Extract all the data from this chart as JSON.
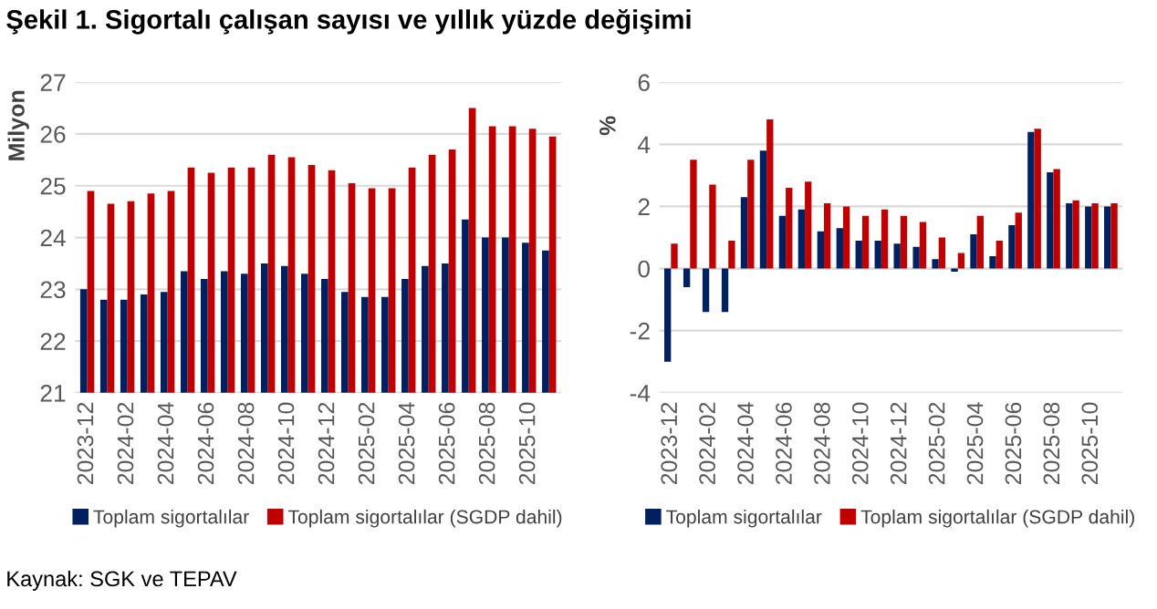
{
  "chart_data": [
    {
      "type": "bar",
      "title": "Şekil 1. Sigortalı çalışan sayısı ve yıllık yüzde değişimi",
      "ylabel": "Milyon",
      "categories": [
        "2023-12",
        null,
        "2024-02",
        null,
        "2024-04",
        null,
        "2024-06",
        null,
        "2024-08",
        null,
        "2024-10",
        null,
        "2024-12",
        null,
        "2025-02",
        null,
        "2025-04",
        null,
        "2025-06",
        null,
        "2025-08",
        null,
        "2025-10",
        null
      ],
      "series": [
        {
          "name": "Toplam sigortalılar",
          "color": "#002060",
          "values": [
            23.0,
            22.8,
            22.8,
            22.9,
            22.95,
            23.35,
            23.2,
            23.35,
            23.3,
            23.5,
            23.45,
            23.3,
            23.2,
            22.95,
            22.85,
            22.85,
            23.2,
            23.45,
            23.5,
            24.35,
            24.0,
            24.0,
            23.9,
            23.75
          ]
        },
        {
          "name": "Toplam sigortalılar (SGDP dahil)",
          "color": "#c00000",
          "values": [
            24.9,
            24.65,
            24.7,
            24.85,
            24.9,
            25.35,
            25.25,
            25.35,
            25.35,
            25.6,
            25.55,
            25.4,
            25.3,
            25.05,
            24.95,
            24.95,
            25.35,
            25.6,
            25.7,
            26.5,
            26.15,
            26.15,
            26.1,
            25.95
          ]
        }
      ],
      "ylim": [
        21,
        27
      ],
      "yticks": [
        21,
        22,
        23,
        24,
        25,
        26,
        27
      ],
      "grid": "y",
      "legend": "bottom",
      "annotations": [
        "Kaynak: SGK ve TEPAV"
      ]
    },
    {
      "type": "bar",
      "ylabel": "%",
      "categories": [
        "2023-12",
        null,
        "2024-02",
        null,
        "2024-04",
        null,
        "2024-06",
        null,
        "2024-08",
        null,
        "2024-10",
        null,
        "2024-12",
        null,
        "2025-02",
        null,
        "2025-04",
        null,
        "2025-06",
        null,
        "2025-08",
        null,
        "2025-10",
        null
      ],
      "series": [
        {
          "name": "Toplam sigortalılar",
          "color": "#002060",
          "values": [
            -3.0,
            -0.6,
            -1.4,
            -1.4,
            2.3,
            3.8,
            1.7,
            1.9,
            1.2,
            1.3,
            0.9,
            0.9,
            0.8,
            0.7,
            0.3,
            -0.1,
            1.1,
            0.4,
            1.4,
            4.4,
            3.1,
            2.1,
            2.0,
            2.0
          ]
        },
        {
          "name": "Toplam sigortalılar (SGDP dahil)",
          "color": "#c00000",
          "values": [
            0.8,
            3.5,
            2.7,
            0.9,
            3.5,
            4.8,
            2.6,
            2.8,
            2.1,
            2.0,
            1.7,
            1.9,
            1.7,
            1.5,
            1.0,
            0.5,
            1.7,
            0.9,
            1.8,
            4.5,
            3.2,
            2.2,
            2.1,
            2.1
          ]
        }
      ],
      "ylim": [
        -4,
        6
      ],
      "yticks": [
        -4,
        -2,
        0,
        2,
        4,
        6
      ],
      "grid": "y",
      "legend": "bottom"
    }
  ]
}
